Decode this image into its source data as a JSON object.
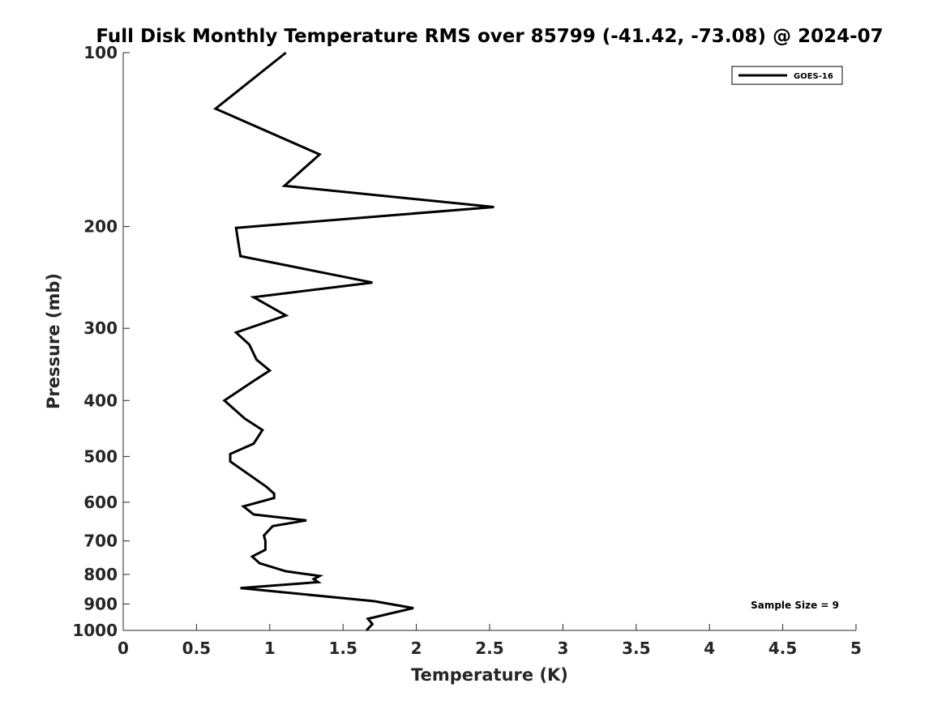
{
  "chart_data": {
    "type": "line",
    "title": "Full Disk Monthly Temperature RMS over 85799 (-41.42, -73.08) @ 2024-07",
    "xlabel": "Temperature (K)",
    "ylabel": "Pressure (mb)",
    "xlim": [
      0,
      5
    ],
    "ylim": [
      100,
      1000
    ],
    "y_scale": "log",
    "y_reversed": true,
    "xticks": [
      "0",
      "0.5",
      "1",
      "1.5",
      "2",
      "2.5",
      "3",
      "3.5",
      "4",
      "4.5",
      "5"
    ],
    "xtick_values": [
      0,
      0.5,
      1,
      1.5,
      2,
      2.5,
      3,
      3.5,
      4,
      4.5,
      5
    ],
    "yticks": [
      "100",
      "200",
      "300",
      "400",
      "500",
      "600",
      "700",
      "800",
      "900",
      "1000"
    ],
    "ytick_values": [
      100,
      200,
      300,
      400,
      500,
      600,
      700,
      800,
      900,
      1000
    ],
    "grid": false,
    "legend_position": "top-right",
    "annotation": "Sample Size = 9",
    "series": [
      {
        "name": "GOES-16",
        "color": "#000000",
        "points": [
          [
            1.11,
            100
          ],
          [
            0.63,
            125
          ],
          [
            1.34,
            150
          ],
          [
            1.1,
            170
          ],
          [
            2.53,
            185
          ],
          [
            0.77,
            201
          ],
          [
            0.8,
            225
          ],
          [
            1.7,
            250
          ],
          [
            0.89,
            265
          ],
          [
            1.11,
            285
          ],
          [
            0.77,
            305
          ],
          [
            0.86,
            320
          ],
          [
            0.91,
            340
          ],
          [
            1.0,
            355
          ],
          [
            0.89,
            370
          ],
          [
            0.69,
            400
          ],
          [
            0.83,
            430
          ],
          [
            0.95,
            450
          ],
          [
            0.89,
            475
          ],
          [
            0.73,
            495
          ],
          [
            0.73,
            510
          ],
          [
            0.87,
            540
          ],
          [
            0.98,
            565
          ],
          [
            1.03,
            580
          ],
          [
            1.03,
            590
          ],
          [
            0.82,
            610
          ],
          [
            0.89,
            630
          ],
          [
            1.25,
            645
          ],
          [
            1.02,
            660
          ],
          [
            0.96,
            685
          ],
          [
            0.97,
            700
          ],
          [
            0.97,
            725
          ],
          [
            0.88,
            745
          ],
          [
            0.93,
            765
          ],
          [
            1.11,
            790
          ],
          [
            1.34,
            805
          ],
          [
            1.3,
            815
          ],
          [
            1.33,
            825
          ],
          [
            0.8,
            845
          ],
          [
            1.71,
            890
          ],
          [
            1.98,
            915
          ],
          [
            1.86,
            930
          ],
          [
            1.67,
            955
          ],
          [
            1.7,
            975
          ],
          [
            1.66,
            1000
          ]
        ]
      }
    ]
  }
}
